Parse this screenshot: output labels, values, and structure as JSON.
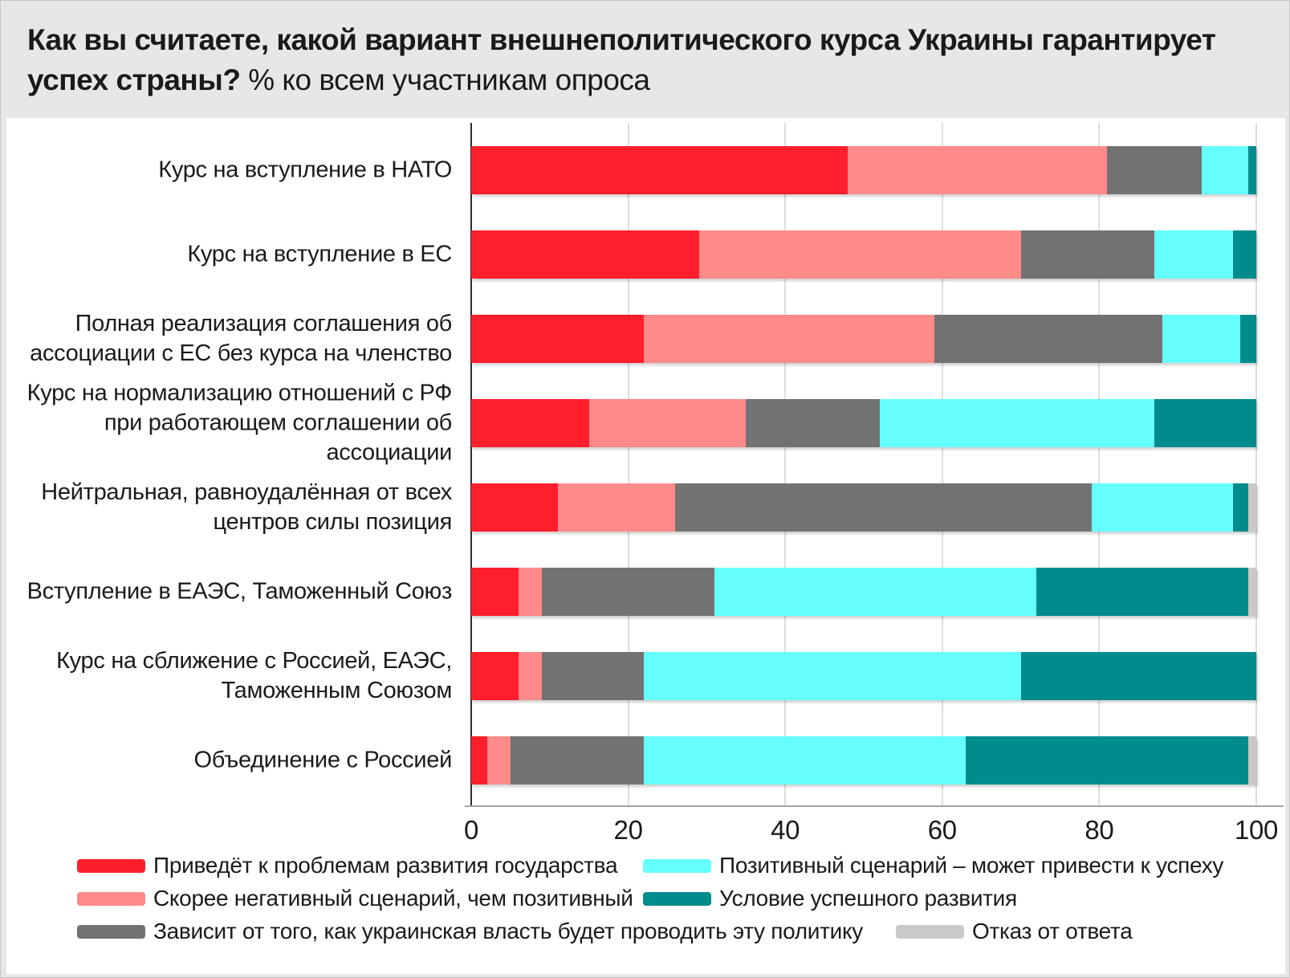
{
  "title": {
    "main": "Как вы считаете, какой вариант внешнеполитического курса Украины гарантирует успех страны?",
    "suffix": "% ко всем участникам опроса"
  },
  "colors": {
    "background": "#e7e7e7",
    "panel": "#ffffff",
    "grid": "#dedede",
    "zero_line": "#2e2e2e",
    "axis_line": "#a3a3a3",
    "text": "#1a1a1a",
    "series_red": "#ff1e2b",
    "series_pink": "#ff8a8a",
    "series_gray": "#727272",
    "series_cyan": "#66ffff",
    "series_teal": "#008b8d",
    "series_lightgray": "#c9c9c9"
  },
  "chart_data": {
    "type": "bar",
    "variant": "horizontal-stacked",
    "title": "Как вы считаете, какой вариант внешнеполитического курса Украины гарантирует успех страны? % ко всем участникам опроса",
    "xlabel": "",
    "ylabel": "",
    "xlim": [
      0,
      100
    ],
    "xticks": [
      0,
      20,
      40,
      60,
      80,
      100
    ],
    "grid": true,
    "legend_position": "bottom",
    "categories": [
      "Курс на вступление в НАТО",
      "Курс на вступление в ЕС",
      "Полная реализация соглашения об ассоциации с ЕС без курса на членство",
      "Курс на нормализацию отношений с РФ при работающем соглашении об ассоциации",
      "Нейтральная, равноудалённая от всех центров силы позиция",
      "Вступление в ЕАЭС, Таможенный Союз",
      "Курс на сближение с Россией, ЕАЭС, Таможенным Союзом",
      "Объединение с Россией"
    ],
    "category_lines": [
      [
        "Курс на вступление в НАТО"
      ],
      [
        "Курс на вступление в ЕС"
      ],
      [
        "Полная реализация соглашения об",
        "ассоциации с ЕС без курса на членство"
      ],
      [
        "Курс на нормализацию отношений с РФ",
        "при работающем соглашении об",
        "ассоциации"
      ],
      [
        "Нейтральная, равноудалённая от всех",
        "центров силы позиция"
      ],
      [
        "Вступление в ЕАЭС, Таможенный Союз"
      ],
      [
        "Курс на сближение с Россией, ЕАЭС,",
        "Таможенным Союзом"
      ],
      [
        "Объединение с Россией"
      ]
    ],
    "series": [
      {
        "name": "Приведёт к проблемам развития государства",
        "color": "#ff1e2b",
        "values": [
          48,
          29,
          22,
          15,
          11,
          6,
          6,
          2
        ]
      },
      {
        "name": "Скорее негативный сценарий, чем позитивный",
        "color": "#ff8a8a",
        "values": [
          33,
          41,
          37,
          20,
          15,
          3,
          3,
          3
        ]
      },
      {
        "name": "Зависит от того, как украинская власть будет проводить эту политику",
        "color": "#727272",
        "values": [
          12,
          17,
          29,
          17,
          53,
          22,
          13,
          17
        ]
      },
      {
        "name": "Позитивный сценарий – может привести к успеху",
        "color": "#66ffff",
        "values": [
          6,
          10,
          10,
          35,
          18,
          41,
          48,
          41
        ]
      },
      {
        "name": "Условие успешного развития",
        "color": "#008b8d",
        "values": [
          1,
          3,
          2,
          13,
          2,
          27,
          30,
          36
        ]
      },
      {
        "name": "Отказ от ответа",
        "color": "#c9c9c9",
        "values": [
          0,
          0,
          0,
          0,
          1,
          1,
          0,
          1
        ]
      }
    ]
  },
  "axis": {
    "tick_labels": [
      "0",
      "20",
      "40",
      "60",
      "80",
      "100"
    ]
  },
  "legend": {
    "items": [
      "Приведёт к проблемам развития государства",
      "Скорее негативный сценарий, чем позитивный",
      "Зависит от того, как украинская власть будет проводить эту политику",
      "Позитивный сценарий – может привести к успеху",
      "Условие успешного развития",
      "Отказ от ответа"
    ]
  }
}
